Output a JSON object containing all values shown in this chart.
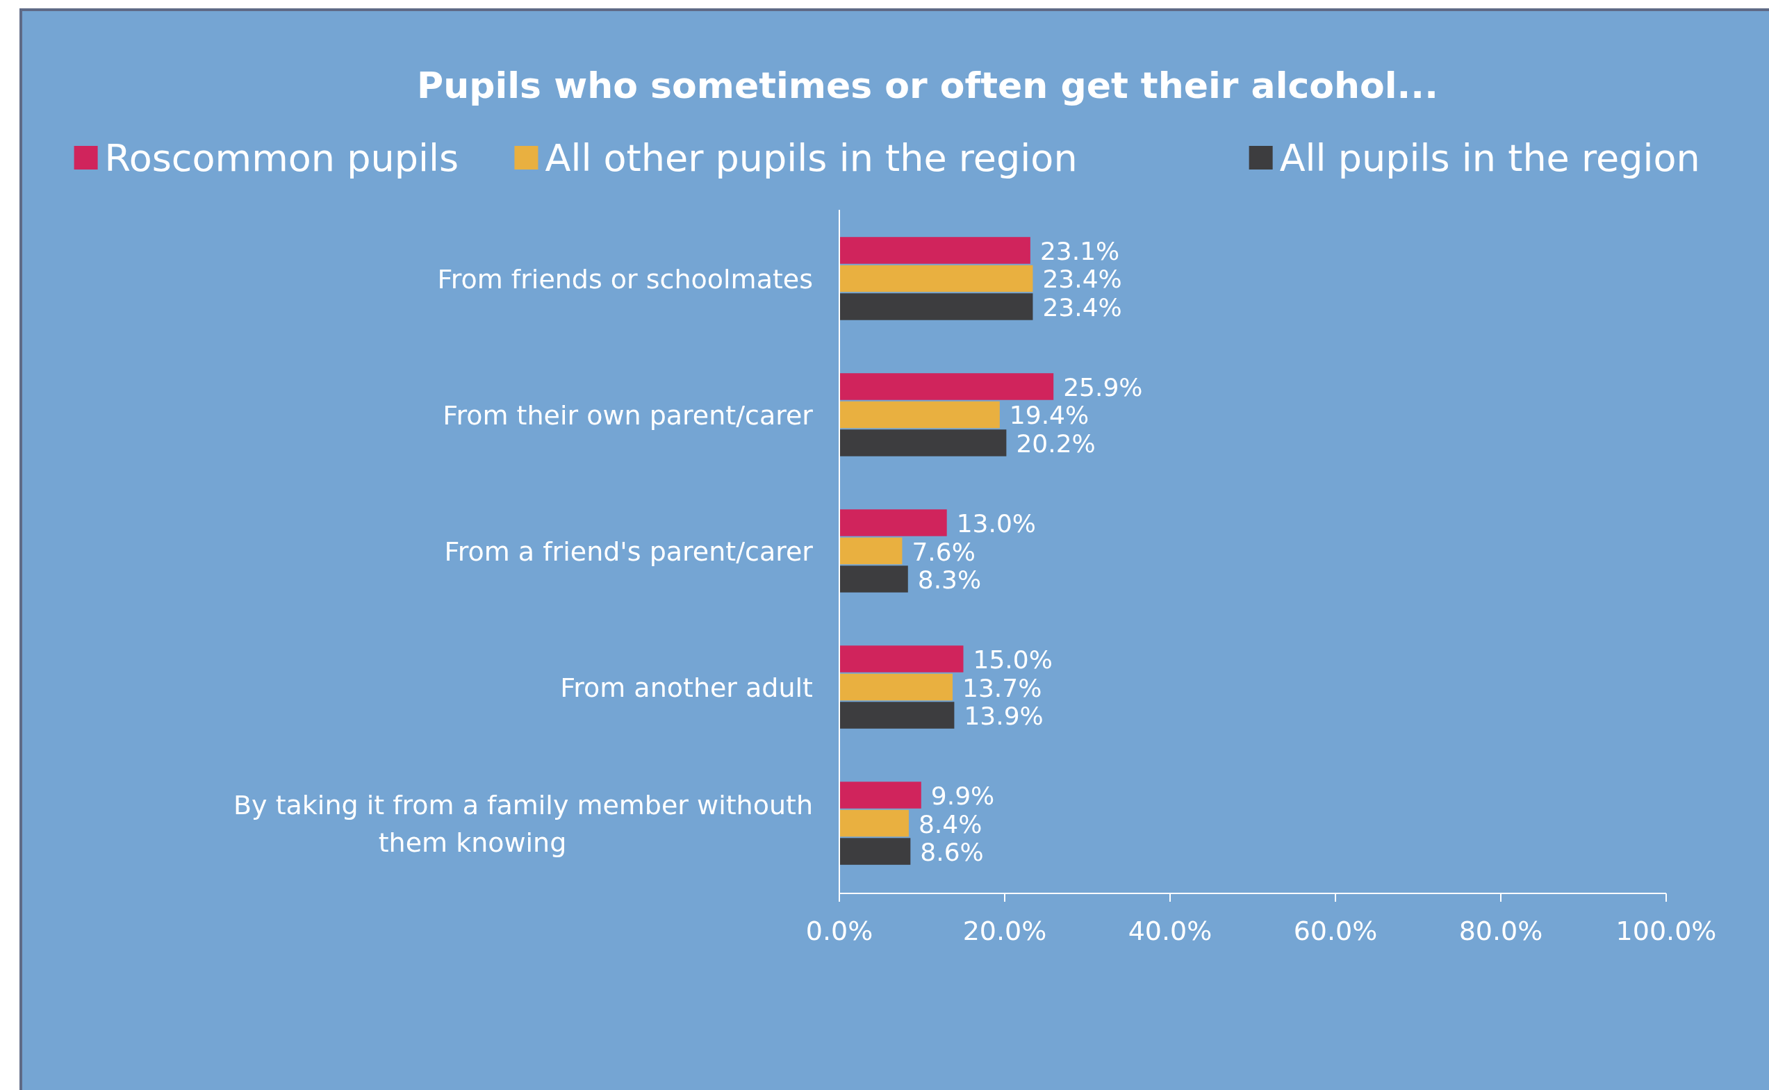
{
  "chart_data": {
    "type": "bar",
    "orientation": "horizontal",
    "title": "Pupils who sometimes or often get their alcohol...",
    "categories": [
      "From friends or schoolmates",
      "From their own parent/carer",
      "From a friend's parent/carer",
      "From another adult",
      "By taking it from a family member withouth them knowing"
    ],
    "series": [
      {
        "name": "Roscommon pupils",
        "color": "#d0245c",
        "values": [
          23.1,
          25.9,
          13.0,
          15.0,
          9.9
        ],
        "value_labels": [
          "23.1%",
          "25.9%",
          "13.0%",
          "15.0%",
          "9.9%"
        ]
      },
      {
        "name": "All other pupils in the region",
        "color": "#e9b040",
        "values": [
          23.4,
          19.4,
          7.6,
          13.7,
          8.4
        ],
        "value_labels": [
          "23.4%",
          "19.4%",
          "7.6%",
          "13.7%",
          "8.4%"
        ]
      },
      {
        "name": "All pupils in the region",
        "color": "#3d3d3f",
        "values": [
          23.4,
          20.2,
          8.3,
          13.9,
          8.6
        ],
        "value_labels": [
          "23.4%",
          "20.2%",
          "8.3%",
          "13.9%",
          "8.6%"
        ]
      }
    ],
    "xlim": [
      0,
      100
    ],
    "xticks": [
      {
        "value": 0,
        "label": "0.0%"
      },
      {
        "value": 20,
        "label": "20.0%"
      },
      {
        "value": 40,
        "label": "40.0%"
      },
      {
        "value": 60,
        "label": "60.0%"
      },
      {
        "value": 80,
        "label": "80.0%"
      },
      {
        "value": 100,
        "label": "100.0%"
      }
    ],
    "grid": false,
    "legend": "top"
  }
}
